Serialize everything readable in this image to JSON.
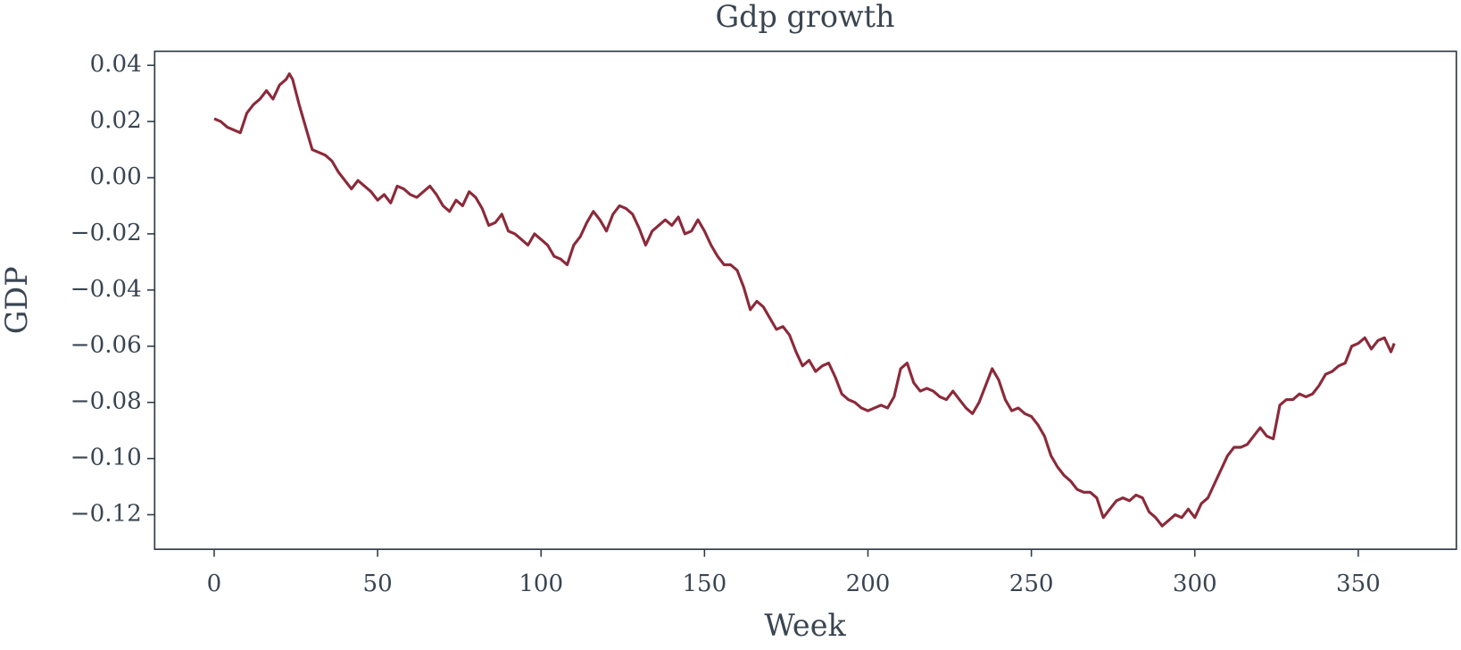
{
  "chart_data": {
    "type": "line",
    "title": "Gdp growth",
    "xlabel": "Week",
    "ylabel": "GDP",
    "x": [
      0,
      2,
      4,
      6,
      8,
      10,
      12,
      14,
      16,
      18,
      20,
      22,
      23,
      24,
      26,
      28,
      30,
      32,
      34,
      36,
      38,
      40,
      42,
      44,
      46,
      48,
      50,
      52,
      54,
      56,
      58,
      60,
      62,
      64,
      66,
      68,
      70,
      72,
      74,
      76,
      78,
      80,
      82,
      84,
      86,
      88,
      90,
      92,
      94,
      96,
      98,
      100,
      102,
      104,
      106,
      108,
      110,
      112,
      114,
      116,
      118,
      120,
      122,
      124,
      126,
      128,
      130,
      132,
      134,
      136,
      138,
      140,
      142,
      144,
      146,
      148,
      150,
      152,
      154,
      156,
      158,
      160,
      162,
      164,
      166,
      168,
      170,
      172,
      174,
      176,
      178,
      180,
      182,
      184,
      186,
      188,
      190,
      192,
      194,
      196,
      198,
      200,
      202,
      204,
      206,
      208,
      210,
      212,
      214,
      216,
      218,
      220,
      222,
      224,
      226,
      228,
      230,
      232,
      234,
      236,
      238,
      240,
      242,
      244,
      246,
      248,
      250,
      252,
      254,
      256,
      258,
      260,
      262,
      264,
      266,
      268,
      270,
      272,
      274,
      276,
      278,
      280,
      282,
      284,
      286,
      288,
      290,
      292,
      294,
      296,
      298,
      300,
      302,
      304,
      306,
      308,
      310,
      312,
      314,
      316,
      318,
      320,
      322,
      324,
      326,
      328,
      330,
      332,
      334,
      336,
      338,
      340,
      342,
      344,
      346,
      348,
      350,
      352,
      354,
      356,
      358,
      360,
      361
    ],
    "series": [
      {
        "name": "GDP",
        "color": "#8b2a3a",
        "values": [
          0.021,
          0.02,
          0.018,
          0.017,
          0.016,
          0.023,
          0.026,
          0.028,
          0.031,
          0.028,
          0.033,
          0.035,
          0.037,
          0.035,
          0.026,
          0.018,
          0.01,
          0.009,
          0.008,
          0.006,
          0.002,
          -0.001,
          -0.004,
          -0.001,
          -0.003,
          -0.005,
          -0.008,
          -0.006,
          -0.009,
          -0.003,
          -0.004,
          -0.006,
          -0.007,
          -0.005,
          -0.003,
          -0.006,
          -0.01,
          -0.012,
          -0.008,
          -0.01,
          -0.005,
          -0.007,
          -0.011,
          -0.017,
          -0.016,
          -0.013,
          -0.019,
          -0.02,
          -0.022,
          -0.024,
          -0.02,
          -0.022,
          -0.024,
          -0.028,
          -0.029,
          -0.031,
          -0.024,
          -0.021,
          -0.016,
          -0.012,
          -0.015,
          -0.019,
          -0.013,
          -0.01,
          -0.011,
          -0.013,
          -0.018,
          -0.024,
          -0.019,
          -0.017,
          -0.015,
          -0.017,
          -0.014,
          -0.02,
          -0.019,
          -0.015,
          -0.019,
          -0.024,
          -0.028,
          -0.031,
          -0.031,
          -0.033,
          -0.039,
          -0.047,
          -0.044,
          -0.046,
          -0.05,
          -0.054,
          -0.053,
          -0.056,
          -0.062,
          -0.067,
          -0.065,
          -0.069,
          -0.067,
          -0.066,
          -0.071,
          -0.077,
          -0.079,
          -0.08,
          -0.082,
          -0.083,
          -0.082,
          -0.081,
          -0.082,
          -0.078,
          -0.068,
          -0.066,
          -0.073,
          -0.076,
          -0.075,
          -0.076,
          -0.078,
          -0.079,
          -0.076,
          -0.079,
          -0.082,
          -0.084,
          -0.08,
          -0.074,
          -0.068,
          -0.072,
          -0.079,
          -0.083,
          -0.082,
          -0.084,
          -0.085,
          -0.088,
          -0.092,
          -0.099,
          -0.103,
          -0.106,
          -0.108,
          -0.111,
          -0.112,
          -0.112,
          -0.114,
          -0.121,
          -0.118,
          -0.115,
          -0.114,
          -0.115,
          -0.113,
          -0.114,
          -0.119,
          -0.121,
          -0.124,
          -0.122,
          -0.12,
          -0.121,
          -0.118,
          -0.121,
          -0.116,
          -0.114,
          -0.109,
          -0.104,
          -0.099,
          -0.096,
          -0.096,
          -0.095,
          -0.092,
          -0.089,
          -0.092,
          -0.093,
          -0.081,
          -0.079,
          -0.079,
          -0.077,
          -0.078,
          -0.077,
          -0.074,
          -0.07,
          -0.069,
          -0.067,
          -0.066,
          -0.06,
          -0.059,
          -0.057,
          -0.061,
          -0.058,
          -0.057,
          -0.062,
          -0.059
        ]
      }
    ],
    "xlim": [
      -18.2,
      380
    ],
    "xticks": [
      0,
      50,
      100,
      150,
      200,
      250,
      300,
      350
    ],
    "ylim": [
      -0.1323,
      0.045
    ],
    "yticks": [
      {
        "value": -0.12,
        "label": "−0.12"
      },
      {
        "value": -0.1,
        "label": "−0.10"
      },
      {
        "value": -0.08,
        "label": "−0.08"
      },
      {
        "value": -0.06,
        "label": "−0.06"
      },
      {
        "value": -0.04,
        "label": "−0.04"
      },
      {
        "value": -0.02,
        "label": "−0.02"
      },
      {
        "value": 0,
        "label": "0.00"
      },
      0.02,
      0.04
    ],
    "grid": false
  }
}
